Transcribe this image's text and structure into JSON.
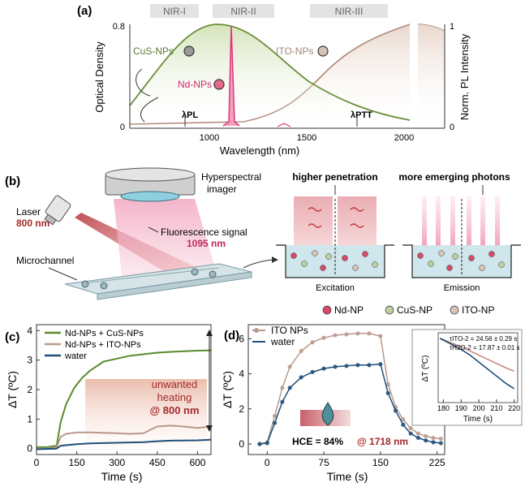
{
  "panel_a": {
    "label": "(a)",
    "bands": [
      "NIR-I",
      "NIR-II",
      "NIR-III"
    ],
    "ylabel_left": "Optical Density",
    "ylabel_right": "Norm. PL Intensity",
    "xlabel": "Wavelength (nm)",
    "xticks": [
      "1000",
      "1500",
      "2000"
    ],
    "yticks_left": [
      "0",
      "0.8"
    ],
    "yticks_right": [
      "0",
      "1"
    ],
    "legend": {
      "cus": "CuS-NPs",
      "nd": "Nd-NPs",
      "ito": "ITO-NPs"
    },
    "lambda_pl": "λPL",
    "lambda_ptt": "λPTT"
  },
  "panel_b": {
    "label": "(b)",
    "hyperspectral": "Hyperspectral",
    "imager": "imager",
    "laser": "Laser",
    "laser_wl": "800 nm",
    "fluorescence": "Fluorescence signal",
    "fluor_wl": "1095 nm",
    "microchannel": "Microchannel",
    "higher_penetration": "higher penetration",
    "emerging_photons": "more emerging photons",
    "excitation": "Excitation",
    "emission": "Emission",
    "legend": [
      "Nd-NP",
      "CuS-NP",
      "ITO-NP"
    ]
  },
  "chart_data": [
    {
      "type": "line",
      "panel": "(c)",
      "xlabel": "Time (s)",
      "ylabel": "ΔT (ºC)",
      "xlim": [
        0,
        650
      ],
      "ylim": [
        -0.2,
        4.2
      ],
      "xticks": [
        0,
        150,
        300,
        450,
        600
      ],
      "yticks": [
        0,
        1,
        2,
        3,
        4
      ],
      "annotation": [
        "unwanted",
        "heating",
        "@ 800 nm"
      ],
      "series": [
        {
          "name": "Nd-NPs + CuS-NPs",
          "color": "#5a8a2e",
          "x": [
            0,
            40,
            75,
            90,
            110,
            140,
            170,
            200,
            250,
            300,
            350,
            400,
            450,
            500,
            550,
            600,
            650
          ],
          "y": [
            0.05,
            0.05,
            0.1,
            0.9,
            1.5,
            2.05,
            2.4,
            2.65,
            2.95,
            3.05,
            3.15,
            3.2,
            3.25,
            3.28,
            3.3,
            3.32,
            3.33
          ]
        },
        {
          "name": "Nd-NPs + ITO-NPs",
          "color": "#b8998a",
          "x": [
            0,
            40,
            75,
            90,
            110,
            150,
            200,
            300,
            350,
            400,
            420,
            450,
            500,
            550,
            600,
            650
          ],
          "y": [
            0.0,
            0.0,
            0.05,
            0.4,
            0.5,
            0.55,
            0.55,
            0.52,
            0.5,
            0.52,
            0.62,
            0.75,
            0.78,
            0.75,
            0.7,
            0.75
          ]
        },
        {
          "name": "water",
          "color": "#1f4e79",
          "x": [
            0,
            75,
            90,
            150,
            200,
            300,
            400,
            450,
            500,
            600,
            650
          ],
          "y": [
            -0.02,
            0.0,
            0.1,
            0.15,
            0.18,
            0.2,
            0.22,
            0.25,
            0.27,
            0.28,
            0.3
          ]
        }
      ]
    },
    {
      "type": "scatter",
      "panel": "(d)",
      "xlabel": "Time (s)",
      "ylabel": "ΔT (ºC)",
      "xlim": [
        -25,
        235
      ],
      "ylim": [
        -0.6,
        6.8
      ],
      "xticks": [
        0,
        75,
        150,
        225
      ],
      "yticks": [
        0,
        2,
        4,
        6
      ],
      "annotation": {
        "hce": "HCE = 84%",
        "at": "@ 1718 nm"
      },
      "series": [
        {
          "name": "ITO NPs",
          "color": "#b8998a",
          "x": [
            -10,
            0,
            10,
            20,
            30,
            45,
            60,
            75,
            90,
            105,
            120,
            135,
            150,
            160,
            170,
            180,
            190,
            200,
            210,
            220,
            230
          ],
          "y": [
            0.0,
            0.1,
            1.6,
            3.2,
            4.4,
            5.3,
            5.8,
            6.05,
            6.2,
            6.25,
            6.3,
            6.3,
            6.15,
            3.4,
            2.1,
            1.4,
            0.9,
            0.6,
            0.45,
            0.35,
            0.3
          ]
        },
        {
          "name": "water",
          "color": "#1f4e79",
          "x": [
            -10,
            0,
            10,
            20,
            30,
            45,
            60,
            75,
            90,
            105,
            120,
            135,
            150,
            160,
            170,
            180,
            190,
            200,
            210,
            220,
            230
          ],
          "y": [
            0.0,
            0.05,
            1.2,
            2.4,
            3.2,
            3.8,
            4.1,
            4.3,
            4.4,
            4.45,
            4.5,
            4.5,
            4.55,
            2.9,
            1.9,
            1.1,
            0.6,
            0.35,
            0.2,
            0.1,
            0.05
          ]
        }
      ]
    },
    {
      "type": "line",
      "panel": "(d-inset)",
      "xlabel": "Time (s)",
      "ylabel": "ΔT (ºC)",
      "xlim": [
        177,
        222
      ],
      "ylim": [
        0,
        1
      ],
      "xticks": [
        180,
        190,
        200,
        210,
        220
      ],
      "labels": {
        "tau_ito": "τITO-2 = 24.56 ± 0.29 s",
        "tau_h2o": "τH2O-2 = 17.87 ± 0.01 s"
      },
      "series": [
        {
          "name": "ITO",
          "color": "#c98a84",
          "x": [
            178,
            185,
            190,
            195,
            200,
            205,
            210,
            215,
            220
          ],
          "y": [
            0.92,
            0.85,
            0.8,
            0.74,
            0.68,
            0.62,
            0.56,
            0.5,
            0.45
          ]
        },
        {
          "name": "water",
          "color": "#1f4e79",
          "x": [
            178,
            185,
            190,
            195,
            200,
            205,
            210,
            215,
            220
          ],
          "y": [
            0.92,
            0.83,
            0.76,
            0.68,
            0.58,
            0.48,
            0.38,
            0.28,
            0.2
          ]
        }
      ]
    }
  ]
}
